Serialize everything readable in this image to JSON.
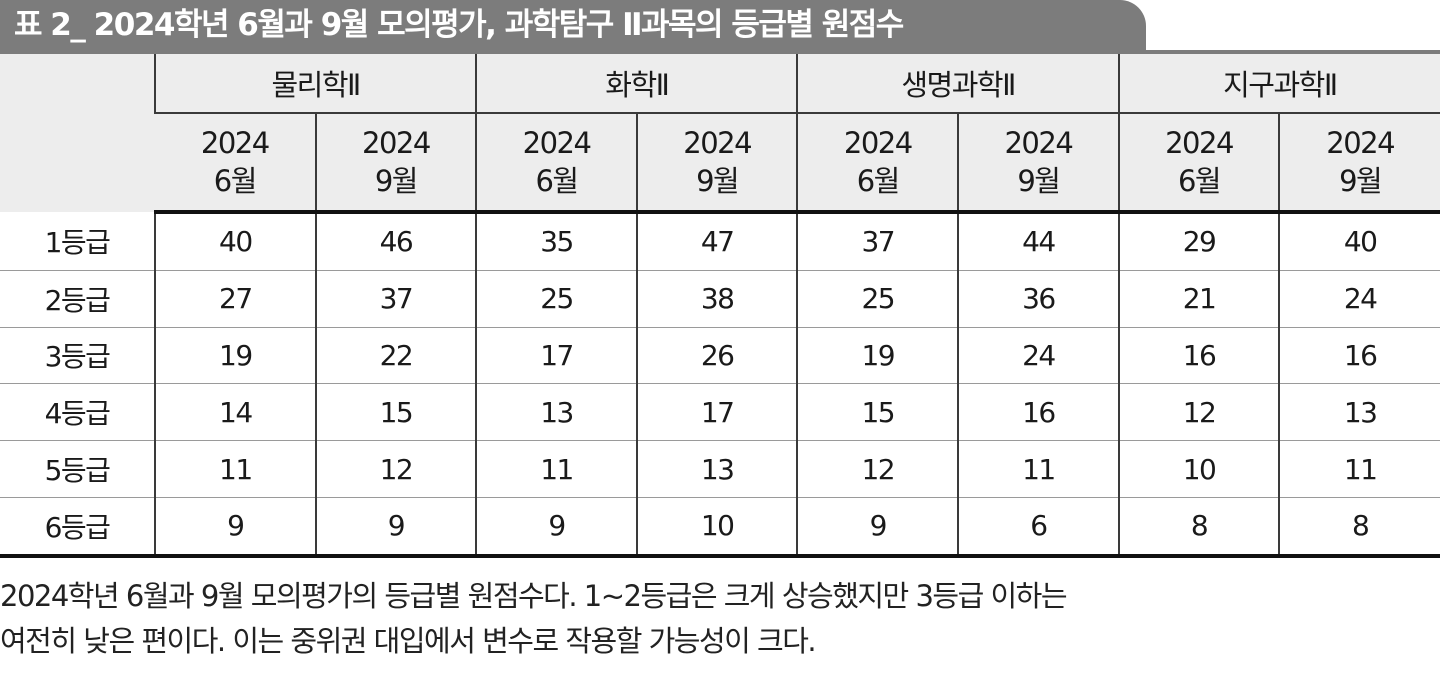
{
  "title": "표 2_ 2024학년 6월과 9월 모의평가, 과학탐구 Ⅱ과목의 등급별 원점수",
  "subjects": [
    "물리학Ⅱ",
    "화학Ⅱ",
    "생명과학Ⅱ",
    "지구과학Ⅱ"
  ],
  "exams": [
    {
      "year": "2024",
      "month": "6월"
    },
    {
      "year": "2024",
      "month": "9월"
    },
    {
      "year": "2024",
      "month": "6월"
    },
    {
      "year": "2024",
      "month": "9월"
    },
    {
      "year": "2024",
      "month": "6월"
    },
    {
      "year": "2024",
      "month": "9월"
    },
    {
      "year": "2024",
      "month": "6월"
    },
    {
      "year": "2024",
      "month": "9월"
    }
  ],
  "rows": [
    {
      "grade": "1등급",
      "values": [
        "40",
        "46",
        "35",
        "47",
        "37",
        "44",
        "29",
        "40"
      ]
    },
    {
      "grade": "2등급",
      "values": [
        "27",
        "37",
        "25",
        "38",
        "25",
        "36",
        "21",
        "24"
      ]
    },
    {
      "grade": "3등급",
      "values": [
        "19",
        "22",
        "17",
        "26",
        "19",
        "24",
        "16",
        "16"
      ]
    },
    {
      "grade": "4등급",
      "values": [
        "14",
        "15",
        "13",
        "17",
        "15",
        "16",
        "12",
        "13"
      ]
    },
    {
      "grade": "5등급",
      "values": [
        "11",
        "12",
        "11",
        "13",
        "12",
        "11",
        "10",
        "11"
      ]
    },
    {
      "grade": "6등급",
      "values": [
        "9",
        "9",
        "9",
        "10",
        "9",
        "6",
        "8",
        "8"
      ]
    }
  ],
  "caption": [
    "2024학년 6월과 9월 모의평가의 등급별 원점수다. 1~2등급은 크게 상승했지만 3등급 이하는",
    "여전히 낮은 편이다. 이는 중위권 대입에서 변수로 작용할 가능성이 크다."
  ]
}
